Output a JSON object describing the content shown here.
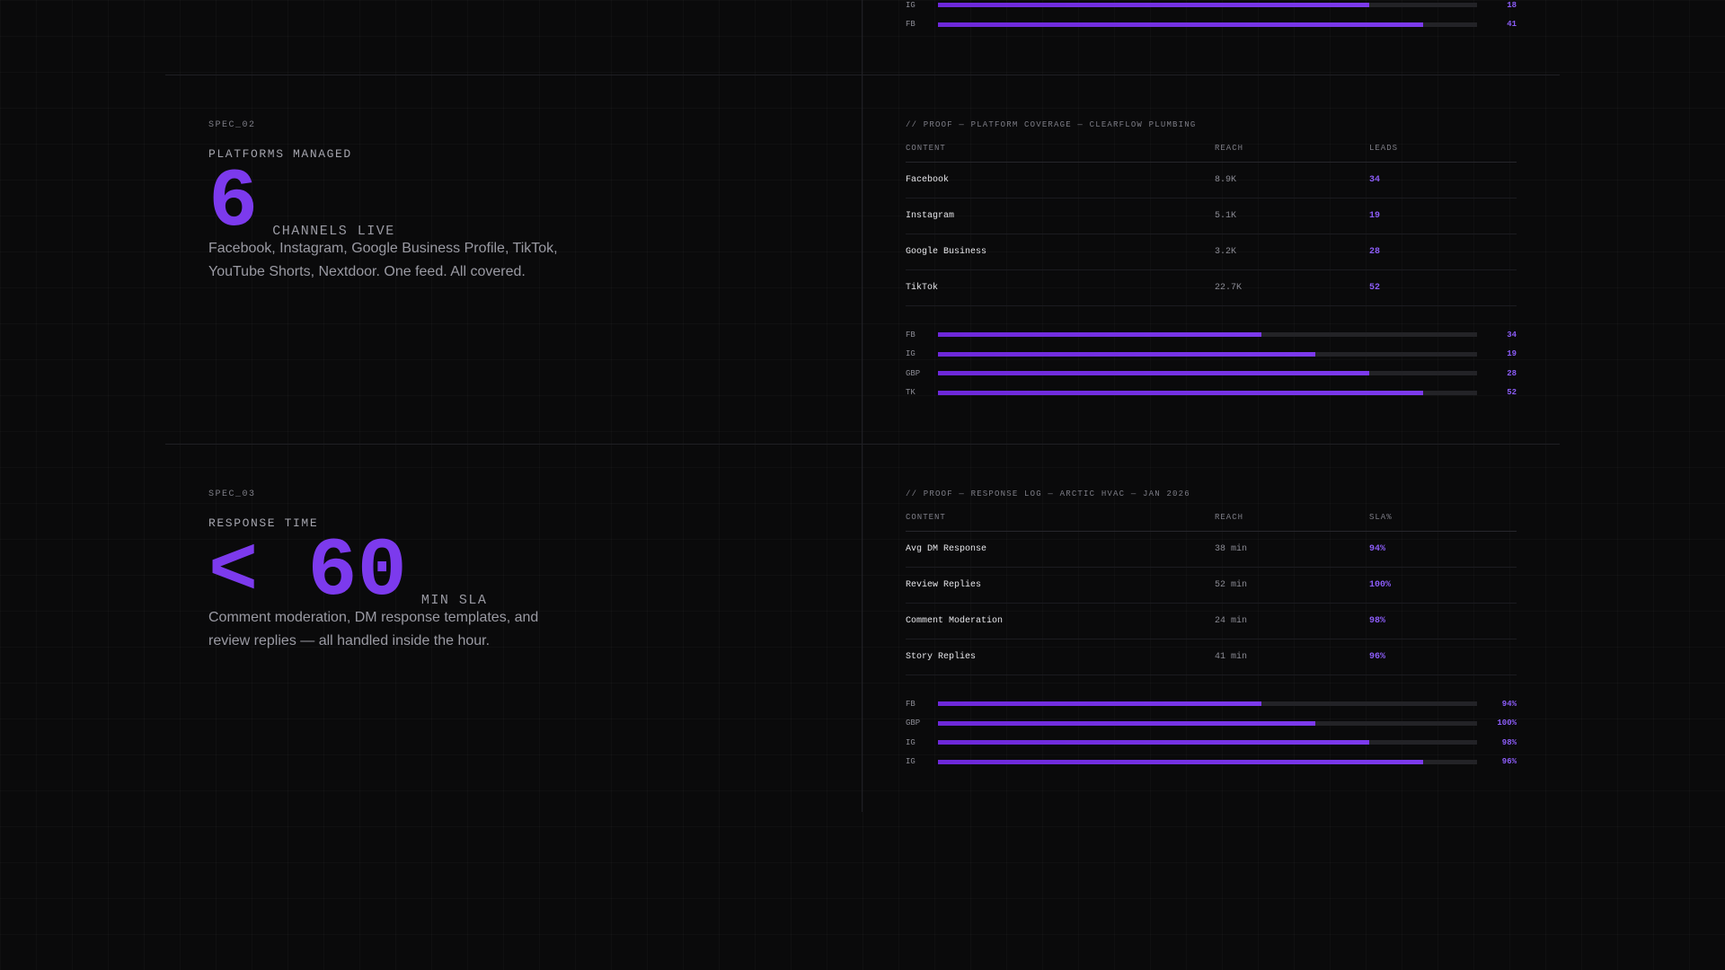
{
  "accent_color": "#7c3aed",
  "top_bars": [
    {
      "label": "IG",
      "value": "18",
      "fill": 0.8
    },
    {
      "label": "FB",
      "value": "41",
      "fill": 0.9
    }
  ],
  "spec_02": {
    "id": "SPEC_02",
    "title": "PLATFORMS MANAGED",
    "big_value": "6",
    "unit": "CHANNELS LIVE",
    "description": "Facebook, Instagram, Google Business Profile, TikTok, YouTube Shorts, Nextdoor. One feed. All covered.",
    "proof_title": "// PROOF — PLATFORM COVERAGE — CLEARFLOW PLUMBING",
    "columns": [
      "CONTENT",
      "REACH",
      "LEADS"
    ],
    "rows": [
      {
        "content": "Facebook",
        "reach": "8.9K",
        "metric": "34"
      },
      {
        "content": "Instagram",
        "reach": "5.1K",
        "metric": "19"
      },
      {
        "content": "Google Business",
        "reach": "3.2K",
        "metric": "28"
      },
      {
        "content": "TikTok",
        "reach": "22.7K",
        "metric": "52"
      }
    ],
    "bars": [
      {
        "label": "FB",
        "value": "34",
        "fill": 0.6
      },
      {
        "label": "IG",
        "value": "19",
        "fill": 0.7
      },
      {
        "label": "GBP",
        "value": "28",
        "fill": 0.8
      },
      {
        "label": "TK",
        "value": "52",
        "fill": 0.9
      }
    ]
  },
  "spec_03": {
    "id": "SPEC_03",
    "title": "RESPONSE TIME",
    "big_value": "< 60",
    "unit": "MIN SLA",
    "description": "Comment moderation, DM response templates, and review replies — all handled inside the hour.",
    "proof_title": "// PROOF — RESPONSE LOG — ARCTIC HVAC — JAN 2026",
    "columns": [
      "CONTENT",
      "REACH",
      "SLA%"
    ],
    "rows": [
      {
        "content": "Avg DM Response",
        "reach": "38 min",
        "metric": "94%"
      },
      {
        "content": "Review Replies",
        "reach": "52 min",
        "metric": "100%"
      },
      {
        "content": "Comment Moderation",
        "reach": "24 min",
        "metric": "98%"
      },
      {
        "content": "Story Replies",
        "reach": "41 min",
        "metric": "96%"
      }
    ],
    "bars": [
      {
        "label": "FB",
        "value": "94%",
        "fill": 0.6
      },
      {
        "label": "GBP",
        "value": "100%",
        "fill": 0.7
      },
      {
        "label": "IG",
        "value": "98%",
        "fill": 0.8
      },
      {
        "label": "IG",
        "value": "96%",
        "fill": 0.9
      }
    ]
  }
}
